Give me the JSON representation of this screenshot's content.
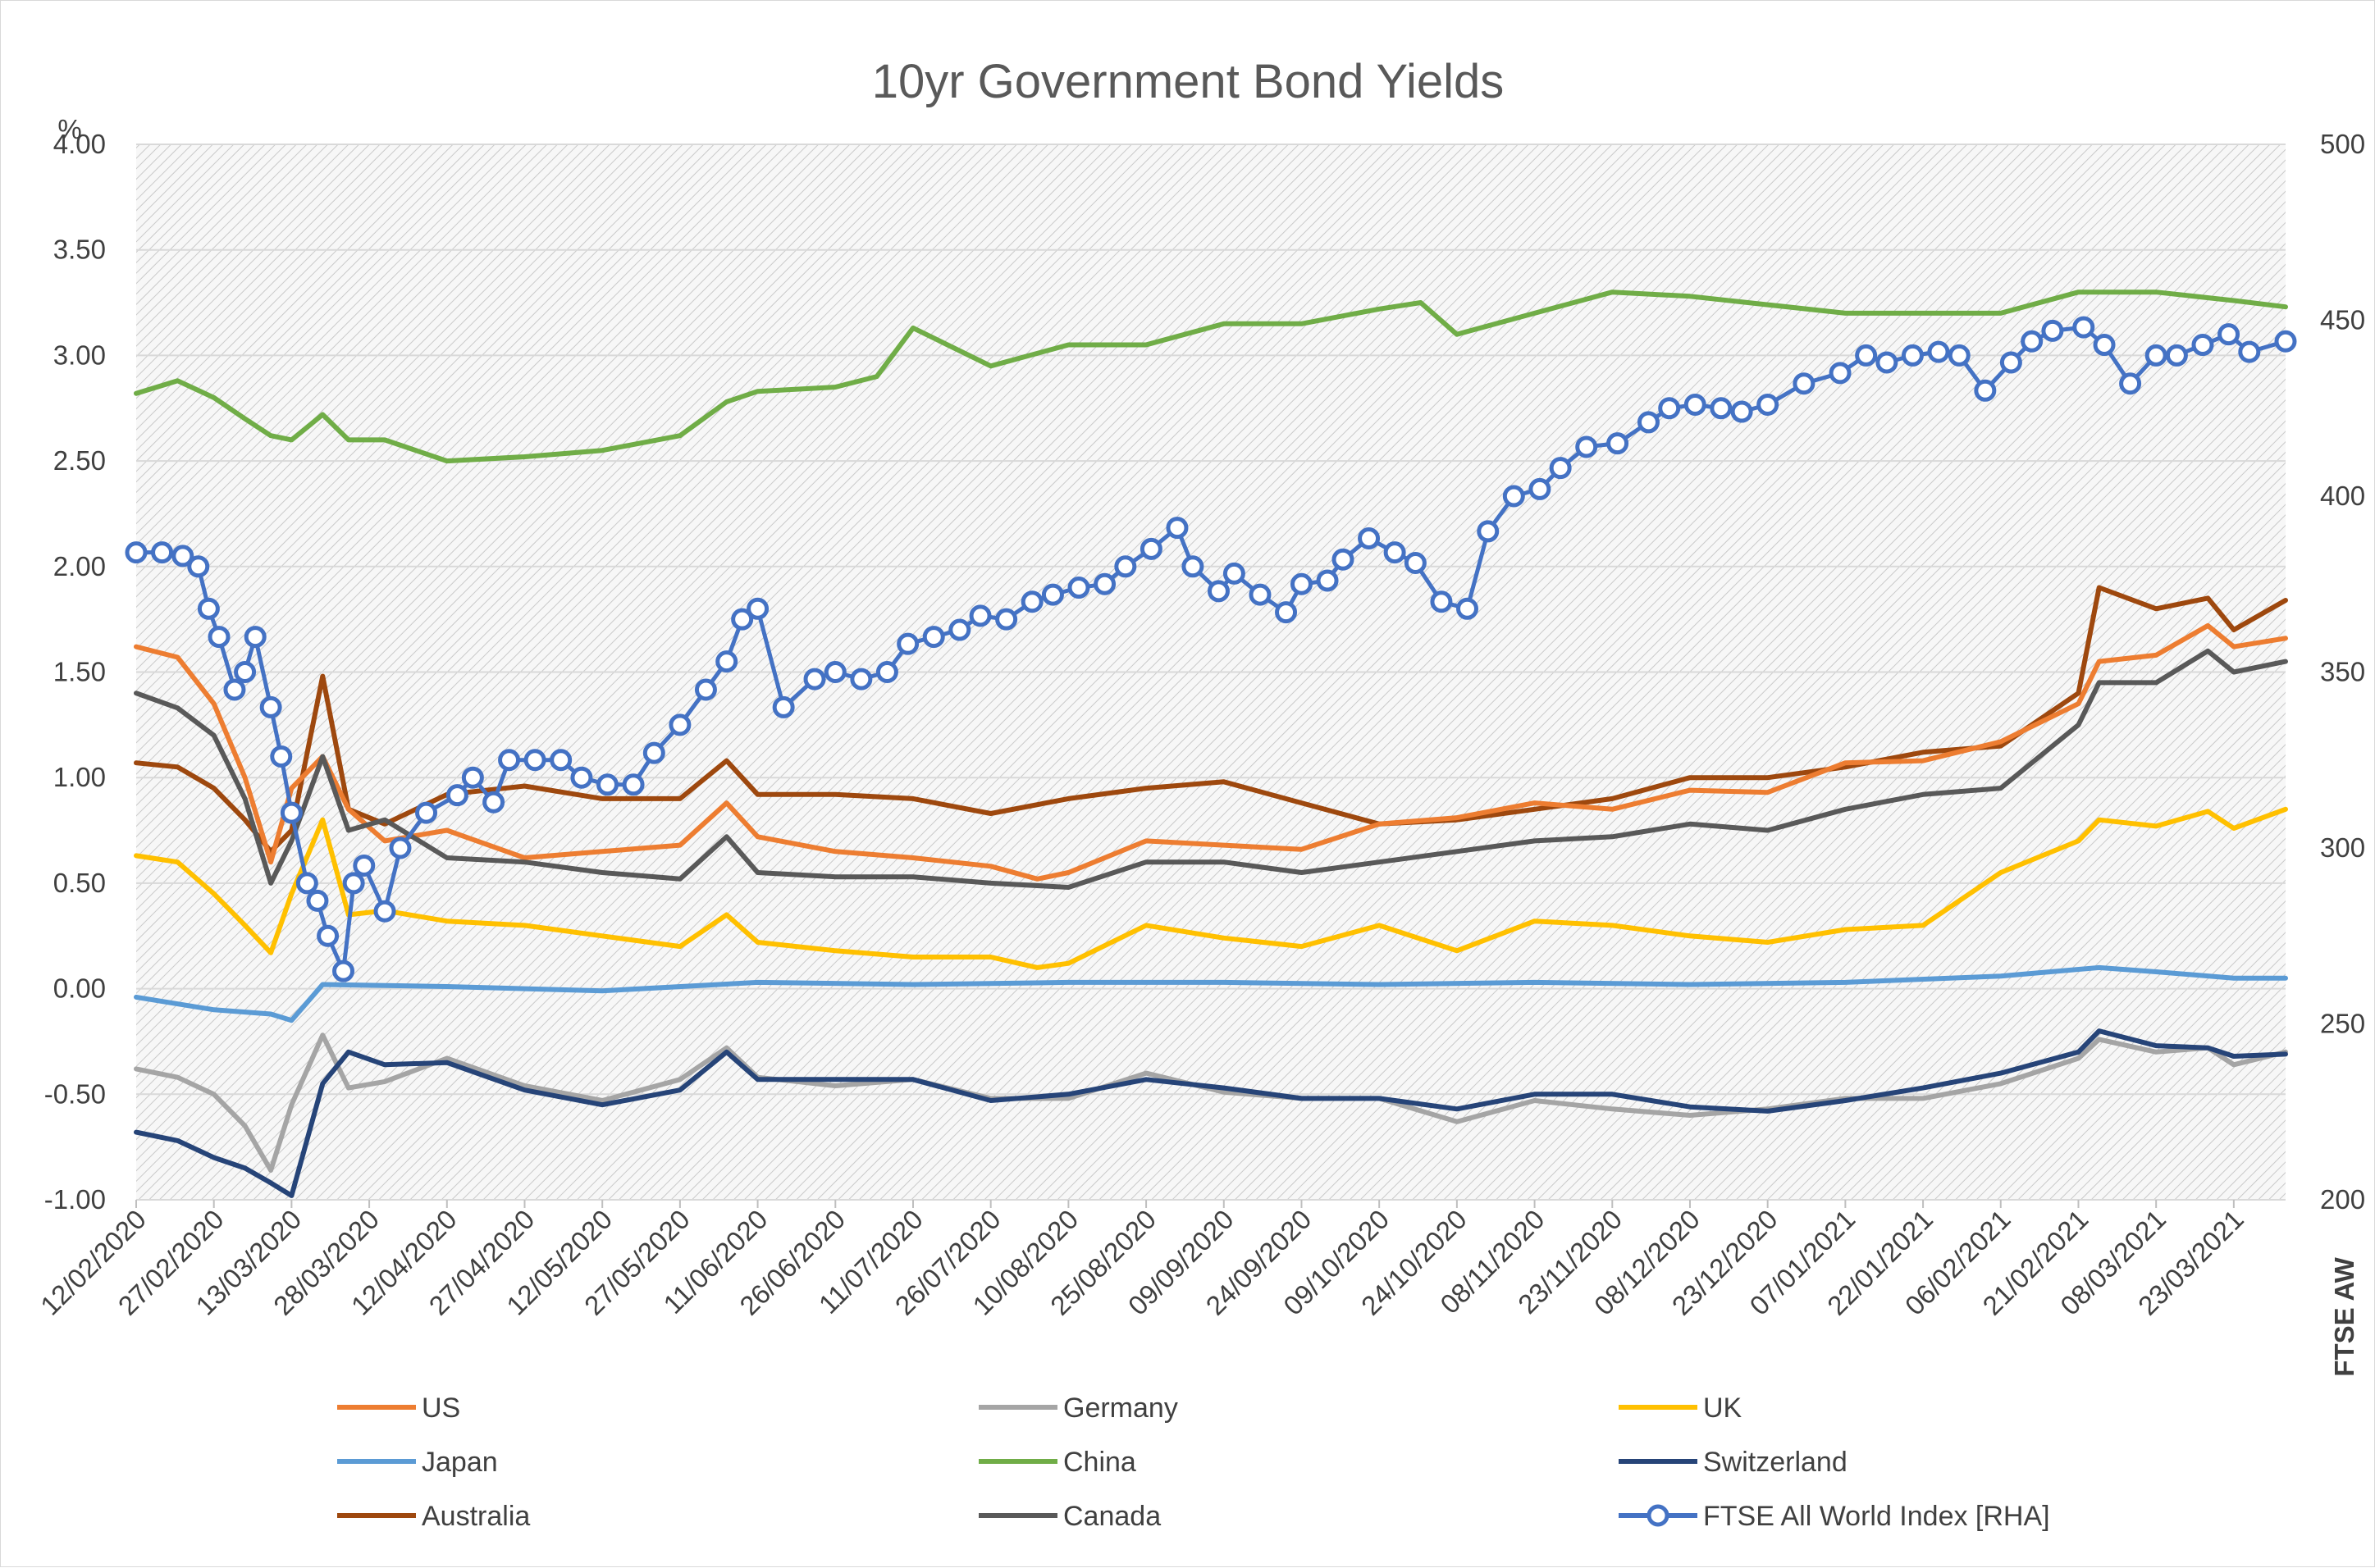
{
  "chart_data": {
    "type": "line",
    "title": "10yr Government Bond Yields",
    "ylabel": "%",
    "y2label": "FTSE AW",
    "ylim": [
      -1.0,
      4.0
    ],
    "y2lim": [
      200,
      500
    ],
    "yticks": [
      "4.00",
      "3.50",
      "3.00",
      "2.50",
      "2.00",
      "1.50",
      "1.00",
      "0.50",
      "0.00",
      "-0.50",
      "-1.00"
    ],
    "y2ticks": [
      "500",
      "450",
      "400",
      "350",
      "300",
      "250",
      "200"
    ],
    "xlim": [
      "2020-02-12",
      "2021-04-02"
    ],
    "xticks": [
      "12/02/2020",
      "27/02/2020",
      "13/03/2020",
      "28/03/2020",
      "12/04/2020",
      "27/04/2020",
      "12/05/2020",
      "27/05/2020",
      "11/06/2020",
      "26/06/2020",
      "11/07/2020",
      "26/07/2020",
      "10/08/2020",
      "25/08/2020",
      "09/09/2020",
      "24/09/2020",
      "09/10/2020",
      "24/10/2020",
      "08/11/2020",
      "23/11/2020",
      "08/12/2020",
      "23/12/2020",
      "07/01/2021",
      "22/01/2021",
      "06/02/2021",
      "21/02/2021",
      "08/03/2021",
      "23/03/2021"
    ],
    "legend_position": "bottom",
    "series": [
      {
        "name": "US",
        "color": "#ED7D31",
        "axis": "left",
        "x": [
          "2020-02-12",
          "2020-02-20",
          "2020-02-27",
          "2020-03-04",
          "2020-03-09",
          "2020-03-13",
          "2020-03-19",
          "2020-03-24",
          "2020-03-31",
          "2020-04-12",
          "2020-04-27",
          "2020-05-12",
          "2020-05-27",
          "2020-06-05",
          "2020-06-11",
          "2020-06-26",
          "2020-07-11",
          "2020-07-26",
          "2020-08-04",
          "2020-08-10",
          "2020-08-25",
          "2020-09-09",
          "2020-09-24",
          "2020-10-09",
          "2020-10-24",
          "2020-11-08",
          "2020-11-23",
          "2020-12-08",
          "2020-12-23",
          "2021-01-07",
          "2021-01-22",
          "2021-02-06",
          "2021-02-21",
          "2021-02-25",
          "2021-03-08",
          "2021-03-18",
          "2021-03-23",
          "2021-04-02"
        ],
        "y": [
          1.62,
          1.57,
          1.35,
          1.0,
          0.6,
          0.95,
          1.1,
          0.85,
          0.7,
          0.75,
          0.62,
          0.65,
          0.68,
          0.88,
          0.72,
          0.65,
          0.62,
          0.58,
          0.52,
          0.55,
          0.7,
          0.68,
          0.66,
          0.78,
          0.81,
          0.88,
          0.85,
          0.94,
          0.93,
          1.07,
          1.08,
          1.17,
          1.35,
          1.55,
          1.58,
          1.72,
          1.62,
          1.66
        ]
      },
      {
        "name": "Germany",
        "color": "#A5A5A5",
        "axis": "left",
        "x": [
          "2020-02-12",
          "2020-02-20",
          "2020-02-27",
          "2020-03-04",
          "2020-03-09",
          "2020-03-13",
          "2020-03-19",
          "2020-03-24",
          "2020-03-31",
          "2020-04-12",
          "2020-04-27",
          "2020-05-12",
          "2020-05-27",
          "2020-06-05",
          "2020-06-11",
          "2020-06-26",
          "2020-07-11",
          "2020-07-26",
          "2020-08-10",
          "2020-08-25",
          "2020-09-09",
          "2020-09-24",
          "2020-10-09",
          "2020-10-24",
          "2020-11-08",
          "2020-11-23",
          "2020-12-08",
          "2020-12-23",
          "2021-01-07",
          "2021-01-22",
          "2021-02-06",
          "2021-02-21",
          "2021-02-25",
          "2021-03-08",
          "2021-03-18",
          "2021-03-23",
          "2021-04-02"
        ],
        "y": [
          -0.38,
          -0.42,
          -0.5,
          -0.65,
          -0.86,
          -0.55,
          -0.22,
          -0.47,
          -0.44,
          -0.33,
          -0.46,
          -0.53,
          -0.43,
          -0.28,
          -0.42,
          -0.46,
          -0.43,
          -0.52,
          -0.52,
          -0.4,
          -0.49,
          -0.52,
          -0.52,
          -0.63,
          -0.53,
          -0.57,
          -0.6,
          -0.57,
          -0.52,
          -0.52,
          -0.45,
          -0.33,
          -0.24,
          -0.3,
          -0.28,
          -0.36,
          -0.3
        ]
      },
      {
        "name": "UK",
        "color": "#FFC000",
        "axis": "left",
        "x": [
          "2020-02-12",
          "2020-02-20",
          "2020-02-27",
          "2020-03-04",
          "2020-03-09",
          "2020-03-13",
          "2020-03-19",
          "2020-03-24",
          "2020-03-31",
          "2020-04-12",
          "2020-04-27",
          "2020-05-12",
          "2020-05-27",
          "2020-06-05",
          "2020-06-11",
          "2020-06-26",
          "2020-07-11",
          "2020-07-26",
          "2020-08-04",
          "2020-08-10",
          "2020-08-25",
          "2020-09-09",
          "2020-09-24",
          "2020-10-09",
          "2020-10-24",
          "2020-11-08",
          "2020-11-23",
          "2020-12-08",
          "2020-12-23",
          "2021-01-07",
          "2021-01-22",
          "2021-02-06",
          "2021-02-21",
          "2021-02-25",
          "2021-03-08",
          "2021-03-18",
          "2021-03-23",
          "2021-04-02"
        ],
        "y": [
          0.63,
          0.6,
          0.45,
          0.3,
          0.17,
          0.45,
          0.8,
          0.35,
          0.37,
          0.32,
          0.3,
          0.25,
          0.2,
          0.35,
          0.22,
          0.18,
          0.15,
          0.15,
          0.1,
          0.12,
          0.3,
          0.24,
          0.2,
          0.3,
          0.18,
          0.32,
          0.3,
          0.25,
          0.22,
          0.28,
          0.3,
          0.55,
          0.7,
          0.8,
          0.77,
          0.84,
          0.76,
          0.85
        ]
      },
      {
        "name": "Japan",
        "color": "#5B9BD5",
        "axis": "left",
        "x": [
          "2020-02-12",
          "2020-02-27",
          "2020-03-09",
          "2020-03-13",
          "2020-03-19",
          "2020-04-12",
          "2020-05-12",
          "2020-06-11",
          "2020-07-11",
          "2020-08-10",
          "2020-09-09",
          "2020-10-09",
          "2020-11-08",
          "2020-12-08",
          "2021-01-07",
          "2021-02-06",
          "2021-02-25",
          "2021-03-08",
          "2021-03-23",
          "2021-04-02"
        ],
        "y": [
          -0.04,
          -0.1,
          -0.12,
          -0.15,
          0.02,
          0.01,
          -0.01,
          0.03,
          0.02,
          0.03,
          0.03,
          0.02,
          0.03,
          0.02,
          0.03,
          0.06,
          0.1,
          0.08,
          0.05,
          0.05
        ]
      },
      {
        "name": "China",
        "color": "#70AD47",
        "axis": "left",
        "x": [
          "2020-02-12",
          "2020-02-20",
          "2020-02-27",
          "2020-03-04",
          "2020-03-09",
          "2020-03-13",
          "2020-03-19",
          "2020-03-24",
          "2020-03-31",
          "2020-04-12",
          "2020-04-27",
          "2020-05-12",
          "2020-05-27",
          "2020-06-05",
          "2020-06-11",
          "2020-06-26",
          "2020-07-04",
          "2020-07-11",
          "2020-07-26",
          "2020-08-10",
          "2020-08-25",
          "2020-09-09",
          "2020-09-24",
          "2020-10-09",
          "2020-10-17",
          "2020-10-24",
          "2020-11-08",
          "2020-11-23",
          "2020-12-08",
          "2020-12-23",
          "2021-01-07",
          "2021-01-22",
          "2021-02-06",
          "2021-02-21",
          "2021-03-08",
          "2021-03-23",
          "2021-04-02"
        ],
        "y": [
          2.82,
          2.88,
          2.8,
          2.7,
          2.62,
          2.6,
          2.72,
          2.6,
          2.6,
          2.5,
          2.52,
          2.55,
          2.62,
          2.78,
          2.83,
          2.85,
          2.9,
          3.13,
          2.95,
          3.05,
          3.05,
          3.15,
          3.15,
          3.22,
          3.25,
          3.1,
          3.2,
          3.3,
          3.28,
          3.24,
          3.2,
          3.2,
          3.2,
          3.3,
          3.3,
          3.26,
          3.23
        ]
      },
      {
        "name": "Switzerland",
        "color": "#264478",
        "axis": "left",
        "x": [
          "2020-02-12",
          "2020-02-20",
          "2020-02-27",
          "2020-03-04",
          "2020-03-09",
          "2020-03-13",
          "2020-03-19",
          "2020-03-24",
          "2020-03-31",
          "2020-04-12",
          "2020-04-27",
          "2020-05-12",
          "2020-05-27",
          "2020-06-05",
          "2020-06-11",
          "2020-06-26",
          "2020-07-11",
          "2020-07-26",
          "2020-08-10",
          "2020-08-25",
          "2020-09-09",
          "2020-09-24",
          "2020-10-09",
          "2020-10-24",
          "2020-11-08",
          "2020-11-23",
          "2020-12-08",
          "2020-12-23",
          "2021-01-07",
          "2021-01-22",
          "2021-02-06",
          "2021-02-21",
          "2021-02-25",
          "2021-03-08",
          "2021-03-18",
          "2021-03-23",
          "2021-04-02"
        ],
        "y": [
          -0.68,
          -0.72,
          -0.8,
          -0.85,
          -0.92,
          -0.98,
          -0.45,
          -0.3,
          -0.36,
          -0.35,
          -0.48,
          -0.55,
          -0.48,
          -0.3,
          -0.43,
          -0.43,
          -0.43,
          -0.53,
          -0.5,
          -0.43,
          -0.47,
          -0.52,
          -0.52,
          -0.57,
          -0.5,
          -0.5,
          -0.56,
          -0.58,
          -0.53,
          -0.47,
          -0.4,
          -0.3,
          -0.2,
          -0.27,
          -0.28,
          -0.32,
          -0.31
        ]
      },
      {
        "name": "Australia",
        "color": "#9E480E",
        "axis": "left",
        "x": [
          "2020-02-12",
          "2020-02-20",
          "2020-02-27",
          "2020-03-04",
          "2020-03-09",
          "2020-03-13",
          "2020-03-19",
          "2020-03-24",
          "2020-03-31",
          "2020-04-12",
          "2020-04-27",
          "2020-05-12",
          "2020-05-27",
          "2020-06-05",
          "2020-06-11",
          "2020-06-26",
          "2020-07-11",
          "2020-07-26",
          "2020-08-10",
          "2020-08-25",
          "2020-09-09",
          "2020-09-24",
          "2020-10-09",
          "2020-10-24",
          "2020-11-08",
          "2020-11-23",
          "2020-12-08",
          "2020-12-23",
          "2021-01-07",
          "2021-01-22",
          "2021-02-06",
          "2021-02-21",
          "2021-02-25",
          "2021-03-08",
          "2021-03-18",
          "2021-03-23",
          "2021-04-02"
        ],
        "y": [
          1.07,
          1.05,
          0.95,
          0.8,
          0.65,
          0.75,
          1.48,
          0.85,
          0.78,
          0.92,
          0.96,
          0.9,
          0.9,
          1.08,
          0.92,
          0.92,
          0.9,
          0.83,
          0.9,
          0.95,
          0.98,
          0.88,
          0.78,
          0.8,
          0.85,
          0.9,
          1.0,
          1.0,
          1.05,
          1.12,
          1.15,
          1.4,
          1.9,
          1.8,
          1.85,
          1.7,
          1.84
        ]
      },
      {
        "name": "Canada",
        "color": "#595959",
        "axis": "left",
        "x": [
          "2020-02-12",
          "2020-02-20",
          "2020-02-27",
          "2020-03-04",
          "2020-03-09",
          "2020-03-13",
          "2020-03-19",
          "2020-03-24",
          "2020-03-31",
          "2020-04-12",
          "2020-04-27",
          "2020-05-12",
          "2020-05-27",
          "2020-06-05",
          "2020-06-11",
          "2020-06-26",
          "2020-07-11",
          "2020-07-26",
          "2020-08-10",
          "2020-08-25",
          "2020-09-09",
          "2020-09-24",
          "2020-10-09",
          "2020-10-24",
          "2020-11-08",
          "2020-11-23",
          "2020-12-08",
          "2020-12-23",
          "2021-01-07",
          "2021-01-22",
          "2021-02-06",
          "2021-02-21",
          "2021-02-25",
          "2021-03-08",
          "2021-03-18",
          "2021-03-23",
          "2021-04-02"
        ],
        "y": [
          1.4,
          1.33,
          1.2,
          0.9,
          0.5,
          0.7,
          1.1,
          0.75,
          0.8,
          0.62,
          0.6,
          0.55,
          0.52,
          0.72,
          0.55,
          0.53,
          0.53,
          0.5,
          0.48,
          0.6,
          0.6,
          0.55,
          0.6,
          0.65,
          0.7,
          0.72,
          0.78,
          0.75,
          0.85,
          0.92,
          0.95,
          1.25,
          1.45,
          1.45,
          1.6,
          1.5,
          1.55
        ]
      },
      {
        "name": "FTSE All World Index [RHA]",
        "color": "#4472C4",
        "axis": "right",
        "marker": "open-circle",
        "x": [
          "2020-02-12",
          "2020-02-17",
          "2020-02-21",
          "2020-02-24",
          "2020-02-26",
          "2020-02-28",
          "2020-03-02",
          "2020-03-04",
          "2020-03-06",
          "2020-03-09",
          "2020-03-11",
          "2020-03-13",
          "2020-03-16",
          "2020-03-18",
          "2020-03-20",
          "2020-03-23",
          "2020-03-25",
          "2020-03-27",
          "2020-03-31",
          "2020-04-03",
          "2020-04-08",
          "2020-04-14",
          "2020-04-17",
          "2020-04-21",
          "2020-04-24",
          "2020-04-29",
          "2020-05-04",
          "2020-05-08",
          "2020-05-13",
          "2020-05-18",
          "2020-05-22",
          "2020-05-27",
          "2020-06-01",
          "2020-06-05",
          "2020-06-08",
          "2020-06-11",
          "2020-06-16",
          "2020-06-22",
          "2020-06-26",
          "2020-07-01",
          "2020-07-06",
          "2020-07-10",
          "2020-07-15",
          "2020-07-20",
          "2020-07-24",
          "2020-07-29",
          "2020-08-03",
          "2020-08-07",
          "2020-08-12",
          "2020-08-17",
          "2020-08-21",
          "2020-08-26",
          "2020-08-31",
          "2020-09-03",
          "2020-09-08",
          "2020-09-11",
          "2020-09-16",
          "2020-09-21",
          "2020-09-24",
          "2020-09-29",
          "2020-10-02",
          "2020-10-07",
          "2020-10-12",
          "2020-10-16",
          "2020-10-21",
          "2020-10-26",
          "2020-10-30",
          "2020-11-04",
          "2020-11-09",
          "2020-11-13",
          "2020-11-18",
          "2020-11-24",
          "2020-11-30",
          "2020-12-04",
          "2020-12-09",
          "2020-12-14",
          "2020-12-18",
          "2020-12-23",
          "2020-12-30",
          "2021-01-06",
          "2021-01-11",
          "2021-01-15",
          "2021-01-20",
          "2021-01-25",
          "2021-01-29",
          "2021-02-03",
          "2021-02-08",
          "2021-02-12",
          "2021-02-16",
          "2021-02-22",
          "2021-02-26",
          "2021-03-03",
          "2021-03-08",
          "2021-03-12",
          "2021-03-17",
          "2021-03-22",
          "2021-03-26",
          "2021-04-02"
        ],
        "y": [
          384,
          384,
          383,
          380,
          368,
          360,
          345,
          350,
          360,
          340,
          326,
          310,
          290,
          285,
          275,
          265,
          290,
          295,
          282,
          300,
          310,
          315,
          320,
          313,
          325,
          325,
          325,
          320,
          318,
          318,
          327,
          335,
          345,
          353,
          365,
          368,
          340,
          348,
          350,
          348,
          350,
          358,
          360,
          362,
          366,
          365,
          370,
          372,
          374,
          375,
          380,
          385,
          391,
          380,
          373,
          378,
          372,
          367,
          375,
          376,
          382,
          388,
          384,
          381,
          370,
          368,
          390,
          400,
          402,
          408,
          414,
          415,
          421,
          425,
          426,
          425,
          424,
          426,
          432,
          435,
          440,
          438,
          440,
          441,
          440,
          430,
          438,
          444,
          447,
          448,
          443,
          432,
          440,
          440,
          443,
          446,
          441,
          444
        ]
      }
    ],
    "legend": [
      "US",
      "Germany",
      "UK",
      "Japan",
      "China",
      "Switzerland",
      "Australia",
      "Canada",
      "FTSE All World Index [RHA]"
    ]
  }
}
